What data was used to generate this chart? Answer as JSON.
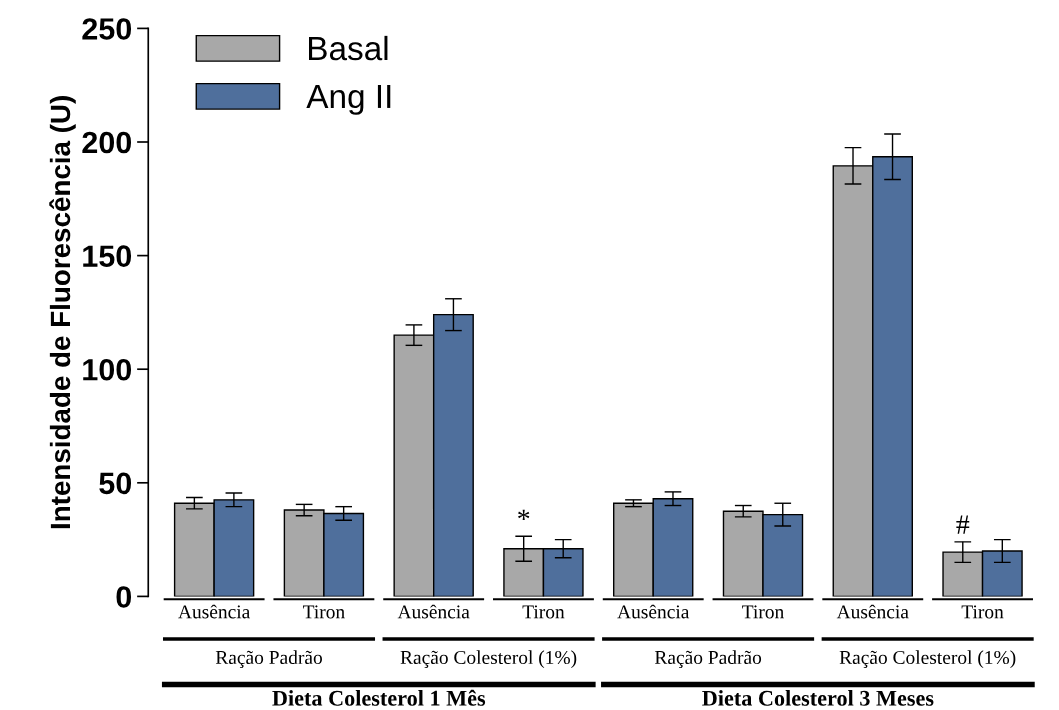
{
  "chart_data": {
    "type": "bar",
    "ylabel": "Intensidade de Fluorescência (U)",
    "categories": [
      "Ausência",
      "Tiron",
      "Ausência",
      "Tiron",
      "Ausência",
      "Tiron",
      "Ausência",
      "Tiron"
    ],
    "series": [
      {
        "name": "Basal",
        "color": "#a8a8a8",
        "values": [
          41,
          38,
          115,
          21,
          41,
          37.5,
          189.5,
          19.5
        ],
        "errors": [
          2.5,
          2.5,
          4.5,
          5.5,
          1.5,
          2.5,
          8,
          4.5
        ],
        "value_labels": [
          null,
          null,
          null,
          "*",
          null,
          null,
          null,
          "#"
        ]
      },
      {
        "name": "Ang II",
        "color": "#4f6f9c",
        "values": [
          42.5,
          36.5,
          124,
          21,
          43,
          36,
          193.5,
          20
        ],
        "errors": [
          3,
          3,
          7,
          4,
          3,
          5,
          10,
          5
        ]
      }
    ],
    "ylim": [
      0,
      250
    ],
    "yticks": [
      0,
      50,
      100,
      150,
      200,
      250
    ],
    "grid": false,
    "legend": "top left",
    "annotations": [
      "Ração Padrão",
      "Ração Colesterol (1%)",
      "Ração Padrão",
      "Ração Colesterol (1%)",
      "Dieta Colesterol 1 Mês",
      "Dieta Colesterol 3 Meses"
    ]
  }
}
